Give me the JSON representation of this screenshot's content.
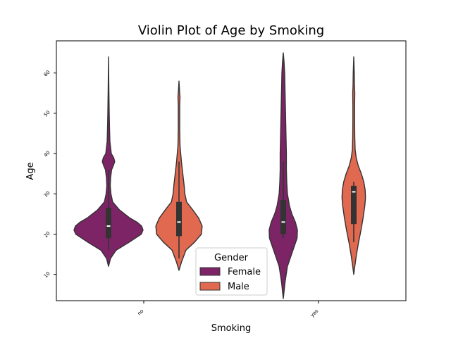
{
  "chart_data": {
    "type": "violin",
    "title": "Violin Plot of Age by Smoking",
    "xlabel": "Smoking",
    "ylabel": "Age",
    "categories": [
      "no",
      "yes"
    ],
    "yticks": [
      10,
      20,
      30,
      40,
      50,
      60
    ],
    "ylim": [
      4,
      67
    ],
    "grid": false,
    "legend": {
      "title": "Gender",
      "placement": "lower-center",
      "entries": [
        "Female",
        "Male"
      ]
    },
    "series": [
      {
        "name": "Female",
        "color": "#7d2467",
        "violins": [
          {
            "category": "no",
            "profile": [
              [
                12,
                0.0
              ],
              [
                14,
                0.06
              ],
              [
                16,
                0.22
              ],
              [
                18,
                0.6
              ],
              [
                20,
                0.95
              ],
              [
                21,
                1.0
              ],
              [
                22,
                0.96
              ],
              [
                23,
                0.82
              ],
              [
                24,
                0.62
              ],
              [
                25,
                0.47
              ],
              [
                26,
                0.32
              ],
              [
                28,
                0.12
              ],
              [
                30,
                0.07
              ],
              [
                32,
                0.05
              ],
              [
                34,
                0.06
              ],
              [
                36,
                0.09
              ],
              [
                37,
                0.14
              ],
              [
                38,
                0.18
              ],
              [
                39,
                0.15
              ],
              [
                40,
                0.08
              ],
              [
                43,
                0.04
              ],
              [
                46,
                0.03
              ],
              [
                50,
                0.02
              ],
              [
                56,
                0.01
              ],
              [
                64,
                0.0
              ]
            ],
            "q1": 19,
            "median": 22,
            "q3": 26.5,
            "whisker_low": 16,
            "whisker_high": 36
          },
          {
            "category": "yes",
            "profile": [
              [
                4,
                0.0
              ],
              [
                8,
                0.05
              ],
              [
                12,
                0.12
              ],
              [
                16,
                0.28
              ],
              [
                19,
                0.4
              ],
              [
                21,
                0.41
              ],
              [
                23,
                0.35
              ],
              [
                25,
                0.25
              ],
              [
                27,
                0.18
              ],
              [
                30,
                0.12
              ],
              [
                33,
                0.1
              ],
              [
                36,
                0.09
              ],
              [
                40,
                0.09
              ],
              [
                44,
                0.08
              ],
              [
                48,
                0.07
              ],
              [
                52,
                0.06
              ],
              [
                56,
                0.05
              ],
              [
                60,
                0.04
              ],
              [
                63,
                0.02
              ],
              [
                65,
                0.0
              ]
            ],
            "q1": 20,
            "median": 23,
            "q3": 28.5,
            "whisker_low": 19,
            "whisker_high": 38
          }
        ]
      },
      {
        "name": "Male",
        "color": "#e06950",
        "violins": [
          {
            "category": "no",
            "profile": [
              [
                11,
                0.0
              ],
              [
                13,
                0.07
              ],
              [
                16,
                0.2
              ],
              [
                18,
                0.45
              ],
              [
                20,
                0.65
              ],
              [
                22,
                0.67
              ],
              [
                24,
                0.57
              ],
              [
                26,
                0.4
              ],
              [
                28,
                0.22
              ],
              [
                30,
                0.17
              ],
              [
                32,
                0.15
              ],
              [
                35,
                0.11
              ],
              [
                38,
                0.07
              ],
              [
                42,
                0.03
              ],
              [
                46,
                0.02
              ],
              [
                50,
                0.02
              ],
              [
                52,
                0.02
              ],
              [
                54,
                0.03
              ],
              [
                55,
                0.02
              ],
              [
                58,
                0.0
              ]
            ],
            "q1": 19.5,
            "median": 23,
            "q3": 28,
            "whisker_low": 14,
            "whisker_high": 38
          },
          {
            "category": "yes",
            "profile": [
              [
                10,
                0.0
              ],
              [
                12,
                0.03
              ],
              [
                15,
                0.08
              ],
              [
                18,
                0.14
              ],
              [
                21,
                0.21
              ],
              [
                24,
                0.27
              ],
              [
                27,
                0.32
              ],
              [
                29,
                0.34
              ],
              [
                31,
                0.33
              ],
              [
                33,
                0.29
              ],
              [
                35,
                0.22
              ],
              [
                37,
                0.13
              ],
              [
                39,
                0.07
              ],
              [
                41,
                0.04
              ],
              [
                44,
                0.03
              ],
              [
                48,
                0.025
              ],
              [
                52,
                0.025
              ],
              [
                55,
                0.03
              ],
              [
                57,
                0.02
              ],
              [
                60,
                0.015
              ],
              [
                64,
                0.0
              ]
            ],
            "q1": 22.5,
            "median": 30.5,
            "q3": 32,
            "whisker_low": 18,
            "whisker_high": 33
          }
        ]
      }
    ]
  }
}
